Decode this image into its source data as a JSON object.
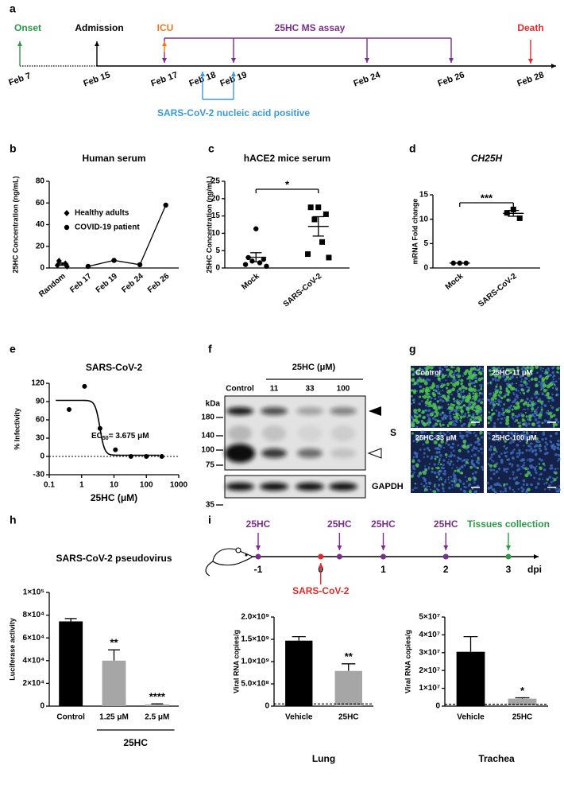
{
  "timeline_a": {
    "label": "a",
    "dates": [
      "Feb 7",
      "Feb 15",
      "Feb 17",
      "Feb 18",
      "Feb 19",
      "Feb 24",
      "Feb 26",
      "Feb 28"
    ],
    "events": {
      "onset": "Onset",
      "admission": "Admission",
      "icu": "ICU",
      "assay": "25HC MS assay",
      "death": "Death",
      "positive": "SARS-CoV-2 nucleic acid positive"
    }
  },
  "chart_data": [
    {
      "label": "b",
      "type": "line",
      "title": "Human serum",
      "y_label": "25HC Concentration (ng/mL)",
      "categories": [
        "Random",
        "Feb 17",
        "Feb 19",
        "Feb 24",
        "Feb 26"
      ],
      "ylim": [
        0,
        80
      ],
      "yticks": [
        0,
        20,
        40,
        60,
        80
      ],
      "series": [
        {
          "name": "Healthy adults",
          "marker": "diamond",
          "color": "#000000",
          "points": [
            6.5,
            4,
            2.5,
            1.5
          ],
          "mean": 3.6,
          "sem": 1.1
        },
        {
          "name": "COVID-19 patient",
          "marker": "circle",
          "color": "#000000",
          "values": [
            null,
            1.5,
            7,
            3,
            58
          ]
        }
      ]
    },
    {
      "label": "c",
      "type": "dot",
      "title": "hACE2 mice serum",
      "y_label": "25HC Concentration (ng/mL)",
      "categories": [
        "Mock",
        "SARS-CoV-2"
      ],
      "ylim": [
        0,
        25
      ],
      "yticks": [
        0,
        5,
        10,
        15,
        20,
        25
      ],
      "groups": [
        {
          "marker": "circle",
          "points": [
            11.3,
            3,
            2.5,
            2,
            1.5,
            1,
            0.5
          ],
          "mean": 3.1,
          "sem": 1.3
        },
        {
          "marker": "square",
          "points": [
            17.5,
            17.5,
            15.5,
            14,
            7.5,
            4,
            3
          ],
          "mean": 12,
          "sem": 2.8
        }
      ],
      "significance": "*"
    },
    {
      "label": "d",
      "type": "dot",
      "title": "CH25H",
      "title_italic": true,
      "y_label": "mRNA Fold change",
      "categories": [
        "Mock",
        "SARS-CoV-2"
      ],
      "ylim": [
        0,
        15
      ],
      "yticks": [
        0,
        5,
        10,
        15
      ],
      "groups": [
        {
          "marker": "circle",
          "points": [
            1,
            1,
            1
          ],
          "mean": 1,
          "sem": 0
        },
        {
          "marker": "square",
          "points": [
            12,
            11.3,
            10.2
          ],
          "mean": 11.2,
          "sem": 0.6
        }
      ],
      "significance": "***"
    },
    {
      "label": "e",
      "type": "scatter",
      "title": "SARS-CoV-2",
      "x_label": "25HC (μM)",
      "y_label": "% Infectivity",
      "xlog": true,
      "xlim": [
        0.1,
        1000
      ],
      "xticks": [
        0.1,
        1,
        10,
        100,
        1000
      ],
      "ylim": [
        -30,
        120
      ],
      "yticks": [
        -30,
        0,
        30,
        60,
        90,
        120
      ],
      "x": [
        0.41,
        1.23,
        3.7,
        11.1,
        33.3,
        100,
        300
      ],
      "values": [
        77,
        115,
        46,
        11,
        0,
        0,
        0
      ],
      "fit": {
        "top": 92,
        "bottom": 2,
        "ec50": 3.675,
        "hill": 6
      },
      "hline": 0,
      "annotation": {
        "text": "EC",
        "sub": "50",
        "rest": "= 3.675 μM"
      }
    },
    {
      "label": "h",
      "type": "bar",
      "title": "SARS-CoV-2 pseudovirus",
      "y_label": "Luciferase activity",
      "categories": [
        "Control",
        "1.25 μM",
        "2.5 μM"
      ],
      "values": [
        74500,
        40000,
        1500
      ],
      "errors": [
        2500,
        9500,
        500
      ],
      "colors": [
        "#000000",
        "#a6a6a6",
        "#a6a6a6"
      ],
      "significance": [
        null,
        "**",
        "****"
      ],
      "group_label": "25HC",
      "ylim": [
        0,
        100000
      ],
      "yticks": [
        0,
        {
          "value": 20000,
          "label": "2×10⁴"
        },
        {
          "value": 40000,
          "label": "4×10⁴"
        },
        {
          "value": 60000,
          "label": "6×10⁴"
        },
        {
          "value": 80000,
          "label": "8×10⁴"
        },
        {
          "value": 100000,
          "label": "1×10⁵"
        }
      ]
    },
    {
      "type": "bar",
      "y_label": "Viral RNA copies/g",
      "x_label": "Lung",
      "categories": [
        "Vehicle",
        "25HC"
      ],
      "values": [
        1470000000,
        790000000
      ],
      "errors": [
        90000000,
        160000000
      ],
      "colors": [
        "#000000",
        "#a6a6a6"
      ],
      "significance": [
        null,
        "**"
      ],
      "detection_limit": 50000000,
      "ylim": [
        0,
        2000000000
      ],
      "yticks": [
        0,
        {
          "value": 500000000,
          "label": "5.0×10⁸"
        },
        {
          "value": 1000000000,
          "label": "1.0×10⁹"
        },
        {
          "value": 1500000000,
          "label": "1.5×10⁹"
        },
        {
          "value": 2000000000,
          "label": "2.0×10⁹"
        }
      ]
    },
    {
      "type": "bar",
      "y_label": "Viral RNA copies/g",
      "x_label": "Trachea",
      "categories": [
        "Vehicle",
        "25HC"
      ],
      "values": [
        30500000,
        4200000
      ],
      "errors": [
        8500000,
        500000
      ],
      "colors": [
        "#000000",
        "#a6a6a6"
      ],
      "significance": [
        null,
        "*"
      ],
      "detection_limit": 1000000,
      "ylim": [
        0,
        50000000
      ],
      "yticks": [
        0,
        {
          "value": 10000000,
          "label": "1×10⁷"
        },
        {
          "value": 20000000,
          "label": "2×10⁷"
        },
        {
          "value": 30000000,
          "label": "3×10⁷"
        },
        {
          "value": 40000000,
          "label": "4×10⁷"
        },
        {
          "value": 50000000,
          "label": "5×10⁷"
        }
      ]
    }
  ],
  "blot_f": {
    "label": "f",
    "treatment": "25HC (μM)",
    "lanes": [
      "Control",
      "11",
      "33",
      "100"
    ],
    "kda_label": "kDa",
    "markers": [
      180,
      140,
      100,
      75
    ],
    "gapdh_marker": 35,
    "band_s": "S",
    "band_gapdh": "GAPDH"
  },
  "images_g": {
    "label": "g",
    "panels": [
      "Control",
      "25HC-11 μM",
      "25HC-33 μM",
      "25HC-100 μM"
    ]
  },
  "timeline_i": {
    "label": "i",
    "ticks": [
      -1,
      0,
      1,
      2,
      3
    ],
    "unit": "dpi",
    "dose_label": "25HC",
    "dose_days": [
      -1,
      0.3,
      1,
      2
    ],
    "infection_label": "SARS-CoV-2",
    "infection_day": 0,
    "collection_label": "Tissues collection",
    "collection_day": 3
  }
}
